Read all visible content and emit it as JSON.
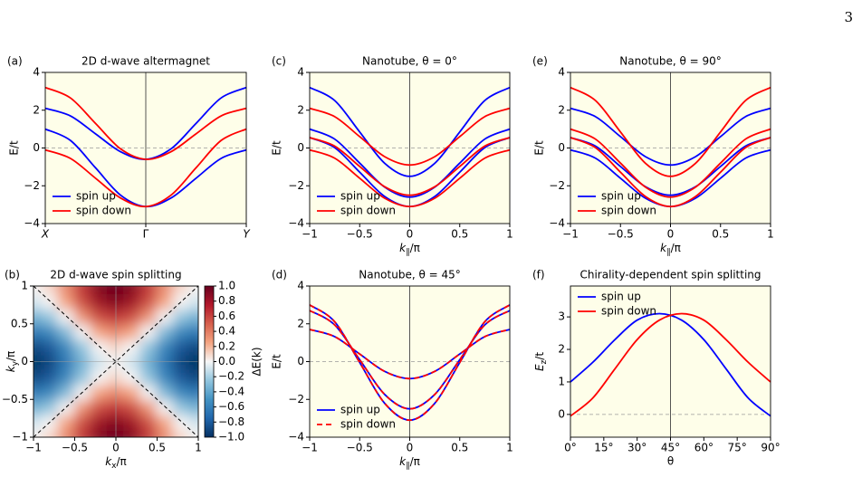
{
  "page_number": "3",
  "chart_data": [
    {
      "type": "line",
      "label": "(a)",
      "title": "2D d-wave altermagnet",
      "ylabel": "E/t",
      "x": [
        0,
        0.25,
        0.5,
        0.75,
        1,
        1.25,
        1.5,
        1.75,
        2
      ],
      "xlim": [
        0,
        2
      ],
      "xticks": [
        {
          "value": 0,
          "label": "X"
        },
        {
          "value": 1,
          "label": "Γ"
        },
        {
          "value": 2,
          "label": "Y"
        }
      ],
      "ylim": [
        -4,
        4
      ],
      "yticks": [
        4,
        2,
        0,
        {
          "value": -2,
          "label": "−2"
        },
        {
          "value": -4,
          "label": "−4"
        }
      ],
      "hline": 0,
      "vline": 1,
      "legend": "lower left",
      "series": [
        {
          "name": "spin up",
          "color": "#0000ff",
          "dashed": false,
          "bands": [
            [
              2.1,
              1.7,
              0.75,
              -0.2,
              -0.6,
              -0.05,
              1.3,
              2.65,
              3.2
            ],
            [
              1.0,
              0.4,
              -1.05,
              -2.5,
              -3.1,
              -2.65,
              -1.6,
              -0.55,
              -0.1
            ]
          ]
        },
        {
          "name": "spin down",
          "color": "#ff0000",
          "dashed": false,
          "bands": [
            [
              3.2,
              2.65,
              1.3,
              -0.05,
              -0.6,
              -0.2,
              0.75,
              1.7,
              2.1
            ],
            [
              -0.1,
              -0.55,
              -1.6,
              -2.65,
              -3.1,
              -2.5,
              -1.05,
              0.4,
              1.0
            ]
          ]
        }
      ]
    },
    {
      "type": "line",
      "label": "(c)",
      "title": "Nanotube, θ = 0°",
      "ylabel": "E/t",
      "xlabel": [
        "k",
        "∥",
        "/π"
      ],
      "x": [
        -1,
        -0.75,
        -0.5,
        -0.25,
        0,
        0.25,
        0.5,
        0.75,
        1
      ],
      "xlim": [
        -1,
        1
      ],
      "xticks": [
        {
          "value": -1,
          "label": "−1"
        },
        {
          "value": -0.5,
          "label": "−0.5"
        },
        0,
        0.5,
        1
      ],
      "ylim": [
        -4,
        4
      ],
      "yticks": [
        4,
        2,
        0,
        {
          "value": -2,
          "label": "−2"
        },
        {
          "value": -4,
          "label": "−4"
        }
      ],
      "hline": 0,
      "vline": 0,
      "legend": "lower left",
      "series": [
        {
          "name": "spin up",
          "color": "#0000ff",
          "dashed": false,
          "bands": [
            [
              3.2,
              2.51,
              0.85,
              -0.81,
              -1.5,
              -0.81,
              0.85,
              2.51,
              3.2
            ],
            [
              1.0,
              0.47,
              -0.8,
              -2.07,
              -2.6,
              -2.07,
              -0.8,
              0.47,
              1.0
            ],
            [
              0.55,
              0.02,
              -1.28,
              -2.57,
              -3.1,
              -2.57,
              -1.28,
              0.02,
              0.55
            ]
          ]
        },
        {
          "name": "spin down",
          "color": "#ff0000",
          "dashed": false,
          "bands": [
            [
              2.1,
              1.66,
              0.6,
              -0.46,
              -0.9,
              -0.46,
              0.6,
              1.66,
              2.1
            ],
            [
              0.55,
              0.1,
              -0.98,
              -2.05,
              -2.5,
              -2.05,
              -0.98,
              0.1,
              0.55
            ],
            [
              -0.1,
              -0.54,
              -1.6,
              -2.66,
              -3.1,
              -2.66,
              -1.6,
              -0.54,
              -0.1
            ]
          ]
        }
      ]
    },
    {
      "type": "line",
      "label": "(e)",
      "title": "Nanotube, θ = 90°",
      "ylabel": "E/t",
      "xlabel": [
        "k",
        "∥",
        "/π"
      ],
      "x": [
        -1,
        -0.75,
        -0.5,
        -0.25,
        0,
        0.25,
        0.5,
        0.75,
        1
      ],
      "xlim": [
        -1,
        1
      ],
      "xticks": [
        {
          "value": -1,
          "label": "−1"
        },
        {
          "value": -0.5,
          "label": "−0.5"
        },
        0,
        0.5,
        1
      ],
      "ylim": [
        -4,
        4
      ],
      "yticks": [
        4,
        2,
        0,
        {
          "value": -2,
          "label": "−2"
        },
        {
          "value": -4,
          "label": "−4"
        }
      ],
      "hline": 0,
      "vline": 0,
      "legend": "lower left",
      "series": [
        {
          "name": "spin up",
          "color": "#0000ff",
          "dashed": false,
          "bands": [
            [
              2.1,
              1.66,
              0.6,
              -0.46,
              -0.9,
              -0.46,
              0.6,
              1.66,
              2.1
            ],
            [
              0.55,
              0.1,
              -0.98,
              -2.05,
              -2.5,
              -2.05,
              -0.98,
              0.1,
              0.55
            ],
            [
              -0.1,
              -0.54,
              -1.6,
              -2.66,
              -3.1,
              -2.66,
              -1.6,
              -0.54,
              -0.1
            ]
          ]
        },
        {
          "name": "spin down",
          "color": "#ff0000",
          "dashed": false,
          "bands": [
            [
              3.2,
              2.51,
              0.85,
              -0.81,
              -1.5,
              -0.81,
              0.85,
              2.51,
              3.2
            ],
            [
              1.0,
              0.47,
              -0.8,
              -2.07,
              -2.6,
              -2.07,
              -0.8,
              0.47,
              1.0
            ],
            [
              0.55,
              0.02,
              -1.28,
              -2.57,
              -3.1,
              -2.57,
              -1.28,
              0.02,
              0.55
            ]
          ]
        }
      ]
    },
    {
      "type": "heatmap",
      "label": "(b)",
      "title": "2D d-wave spin splitting",
      "ylabel": [
        "k",
        "y",
        "/π"
      ],
      "xlabel": [
        "k",
        "x",
        "/π"
      ],
      "x": [
        -1,
        -0.8,
        -0.6,
        -0.4,
        -0.2,
        0,
        0.2,
        0.4,
        0.6,
        0.8,
        1
      ],
      "y": [
        -1,
        -0.8,
        -0.6,
        -0.4,
        -0.2,
        0,
        0.2,
        0.4,
        0.6,
        0.8,
        1
      ],
      "z": [
        [
          0,
          0.1,
          0.35,
          0.65,
          0.9,
          1,
          0.9,
          0.65,
          0.35,
          0.1,
          0
        ],
        [
          -0.1,
          0,
          0.25,
          0.56,
          0.81,
          0.9,
          0.81,
          0.56,
          0.25,
          0,
          -0.1
        ],
        [
          -0.35,
          -0.25,
          0,
          0.31,
          0.56,
          0.65,
          0.56,
          0.31,
          0,
          -0.25,
          -0.35
        ],
        [
          -0.65,
          -0.56,
          -0.31,
          0,
          0.25,
          0.35,
          0.25,
          0,
          -0.31,
          -0.56,
          -0.65
        ],
        [
          -0.9,
          -0.81,
          -0.56,
          -0.25,
          0,
          0.1,
          0,
          -0.25,
          -0.56,
          -0.81,
          -0.9
        ],
        [
          -1,
          -0.9,
          -0.65,
          -0.35,
          -0.1,
          0,
          -0.1,
          -0.35,
          -0.65,
          -0.9,
          -1
        ],
        [
          -0.9,
          -0.81,
          -0.56,
          -0.25,
          0,
          0.1,
          0,
          -0.25,
          -0.56,
          -0.81,
          -0.9
        ],
        [
          -0.65,
          -0.56,
          -0.31,
          0,
          0.25,
          0.35,
          0.25,
          0,
          -0.31,
          -0.56,
          -0.65
        ],
        [
          -0.35,
          -0.25,
          0,
          0.31,
          0.56,
          0.65,
          0.56,
          0.31,
          0,
          -0.25,
          -0.35
        ],
        [
          -0.1,
          0,
          0.25,
          0.56,
          0.81,
          0.9,
          0.81,
          0.56,
          0.25,
          0,
          -0.1
        ],
        [
          0,
          0.1,
          0.35,
          0.65,
          0.9,
          1,
          0.9,
          0.65,
          0.35,
          0.1,
          0
        ]
      ],
      "xlim": [
        -1,
        1
      ],
      "ylim": [
        -1,
        1
      ],
      "xticks": [
        {
          "value": -1,
          "label": "−1"
        },
        {
          "value": -0.5,
          "label": "−0.5"
        },
        0,
        0.5,
        1
      ],
      "yticks": [
        1,
        0.5,
        0,
        {
          "value": -0.5,
          "label": "−0.5"
        },
        {
          "value": -1,
          "label": "−1"
        }
      ],
      "colormap": [
        "#053061",
        "#2166ac",
        "#4393c3",
        "#92c5de",
        "#f7f7f7",
        "#f4a582",
        "#d6604d",
        "#b2182b",
        "#67001f"
      ],
      "colorbar": {
        "label": "ΔE(k)",
        "lim": [
          -1,
          1
        ],
        "ticks": [
          {
            "value": 1,
            "label": "1.0"
          },
          0.8,
          0.6,
          0.4,
          0.2,
          {
            "value": 0,
            "label": "0.0"
          },
          {
            "value": -0.2,
            "label": "−0.2"
          },
          {
            "value": -0.4,
            "label": "−0.4"
          },
          {
            "value": -0.6,
            "label": "−0.6"
          },
          {
            "value": -0.8,
            "label": "−0.8"
          },
          {
            "value": -1,
            "label": "−1.0"
          }
        ]
      }
    },
    {
      "type": "line",
      "label": "(d)",
      "title": "Nanotube, θ = 45°",
      "ylabel": "E/t",
      "xlabel": [
        "k",
        "∥",
        "/π"
      ],
      "x": [
        -1,
        -0.75,
        -0.5,
        -0.25,
        0,
        0.25,
        0.5,
        0.75,
        1
      ],
      "xlim": [
        -1,
        1
      ],
      "xticks": [
        {
          "value": -1,
          "label": "−1"
        },
        {
          "value": -0.5,
          "label": "−0.5"
        },
        0,
        0.5,
        1
      ],
      "ylim": [
        -4,
        4
      ],
      "yticks": [
        4,
        2,
        0,
        {
          "value": -2,
          "label": "−2"
        },
        {
          "value": -4,
          "label": "−4"
        }
      ],
      "hline": 0,
      "vline": 0,
      "legend": "lower left",
      "series": [
        {
          "name": "spin up",
          "color": "#0000ff",
          "dashed": false,
          "bands": [
            [
              1.7,
              1.32,
              0.4,
              -0.52,
              -0.9,
              -0.52,
              0.4,
              1.32,
              1.7
            ],
            [
              2.7,
              1.94,
              0.1,
              -1.74,
              -2.5,
              -1.74,
              0.1,
              1.94,
              2.7
            ],
            [
              3.0,
              2.11,
              -0.05,
              -2.21,
              -3.1,
              -2.21,
              -0.05,
              2.11,
              3.0
            ]
          ]
        },
        {
          "name": "spin down",
          "color": "#ff0000",
          "dashed": true,
          "bands": [
            [
              1.7,
              1.32,
              0.4,
              -0.52,
              -0.9,
              -0.52,
              0.4,
              1.32,
              1.7
            ],
            [
              2.7,
              1.94,
              0.1,
              -1.74,
              -2.5,
              -1.74,
              0.1,
              1.94,
              2.7
            ],
            [
              3.0,
              2.11,
              -0.05,
              -2.21,
              -3.1,
              -2.21,
              -0.05,
              2.11,
              3.0
            ]
          ]
        }
      ]
    },
    {
      "type": "line",
      "label": "(f)",
      "title": "Chirality-dependent spin splitting",
      "ylabel": [
        "E",
        "z",
        "/t"
      ],
      "xlabel": "θ",
      "x": [
        0,
        10,
        20,
        30,
        40,
        50,
        60,
        70,
        80,
        90
      ],
      "xlim": [
        0,
        90
      ],
      "xticks": [
        {
          "value": 0,
          "label": "0°"
        },
        {
          "value": 15,
          "label": "15°"
        },
        {
          "value": 30,
          "label": "30°"
        },
        {
          "value": 45,
          "label": "45°"
        },
        {
          "value": 60,
          "label": "60°"
        },
        {
          "value": 75,
          "label": "75°"
        },
        {
          "value": 90,
          "label": "90°"
        }
      ],
      "ylim": [
        -0.7,
        3.95
      ],
      "yticks": [
        0,
        1,
        2,
        3
      ],
      "hline": 0,
      "vline": 45,
      "legend": "upper left",
      "series": [
        {
          "name": "spin up",
          "color": "#0000ff",
          "dashed": false,
          "bands": [
            [
              1.0,
              1.6,
              2.3,
              2.9,
              3.1,
              2.9,
              2.3,
              1.4,
              0.5,
              -0.05
            ]
          ]
        },
        {
          "name": "spin down",
          "color": "#ff0000",
          "dashed": false,
          "bands": [
            [
              -0.05,
              0.5,
              1.4,
              2.3,
              2.9,
              3.1,
              2.9,
              2.3,
              1.6,
              1.0
            ]
          ]
        }
      ]
    }
  ]
}
